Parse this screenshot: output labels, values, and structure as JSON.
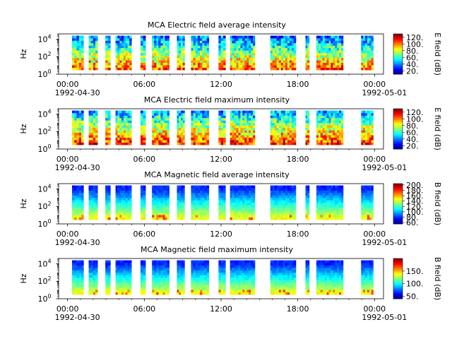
{
  "chart_data": [
    {
      "type": "heatmap",
      "title": "MCA  Electric field average intensity",
      "ylabel": "Hz",
      "yscale": "log",
      "ylim": [
        1,
        40000
      ],
      "y_ticks": [
        {
          "exp": "0"
        },
        {
          "exp": "2"
        },
        {
          "exp": "4"
        }
      ],
      "x_ticks": [
        "00:00",
        "06:00",
        "12:00",
        "18:00",
        "00:00"
      ],
      "x_dates": [
        "1992-04-30",
        "1992-05-01"
      ],
      "xlim_hours": [
        -0.7,
        24.7
      ],
      "colorbar": {
        "label": "E field (dB)",
        "ticks": [
          "20.",
          "40.",
          "60.",
          "80.",
          "100.",
          "120."
        ],
        "range": [
          10,
          130
        ]
      },
      "colormap": "jet",
      "style": "electric"
    },
    {
      "type": "heatmap",
      "title": "MCA  Electric field maximum intensity",
      "ylabel": "Hz",
      "yscale": "log",
      "ylim": [
        1,
        40000
      ],
      "y_ticks": [
        {
          "exp": "0"
        },
        {
          "exp": "2"
        },
        {
          "exp": "4"
        }
      ],
      "x_ticks": [
        "00:00",
        "06:00",
        "12:00",
        "18:00",
        "00:00"
      ],
      "x_dates": [
        "1992-04-30",
        "1992-05-01"
      ],
      "xlim_hours": [
        -0.7,
        24.7
      ],
      "colorbar": {
        "label": "E field (dB)",
        "ticks": [
          "20.",
          "40.",
          "60.",
          "80.",
          "100.",
          "120."
        ],
        "range": [
          10,
          130
        ]
      },
      "colormap": "jet",
      "style": "electric"
    },
    {
      "type": "heatmap",
      "title": "MCA  Magnetic field average intensity",
      "ylabel": "Hz",
      "yscale": "log",
      "ylim": [
        1,
        40000
      ],
      "y_ticks": [
        {
          "exp": "0"
        },
        {
          "exp": "2"
        },
        {
          "exp": "4"
        }
      ],
      "x_ticks": [
        "00:00",
        "06:00",
        "12:00",
        "18:00",
        "00:00"
      ],
      "x_dates": [
        "1992-04-30",
        "1992-05-01"
      ],
      "xlim_hours": [
        -0.7,
        24.7
      ],
      "colorbar": {
        "label": "B field (dB)",
        "ticks": [
          "60.",
          "80.",
          "100.",
          "120.",
          "140.",
          "160.",
          "180.",
          "200."
        ],
        "range": [
          55,
          205
        ]
      },
      "colormap": "jet",
      "style": "magnetic"
    },
    {
      "type": "heatmap",
      "title": "MCA  Magnetic field maximum intensity",
      "ylabel": "Hz",
      "yscale": "log",
      "ylim": [
        1,
        40000
      ],
      "y_ticks": [
        {
          "exp": "0"
        },
        {
          "exp": "2"
        },
        {
          "exp": "4"
        }
      ],
      "x_ticks": [
        "00:00",
        "06:00",
        "12:00",
        "18:00",
        "00:00"
      ],
      "x_dates": [
        "1992-04-30",
        "1992-05-01"
      ],
      "xlim_hours": [
        -0.7,
        24.7
      ],
      "colorbar": {
        "label": "B field (dB)",
        "ticks": [
          "50.",
          "100.",
          "150."
        ],
        "range": [
          40,
          200
        ]
      },
      "colormap": "jet",
      "style": "magnetic"
    }
  ],
  "data_windows_hours": [
    [
      0.35,
      1.25
    ],
    [
      1.65,
      2.35
    ],
    [
      2.95,
      3.35
    ],
    [
      3.75,
      5.0
    ],
    [
      5.7,
      6.1
    ],
    [
      6.6,
      7.95
    ],
    [
      8.55,
      9.15
    ],
    [
      9.65,
      11.05
    ],
    [
      11.8,
      12.35
    ],
    [
      12.7,
      14.65
    ],
    [
      15.85,
      17.85
    ],
    [
      18.6,
      18.9
    ],
    [
      19.45,
      21.55
    ],
    [
      22.95,
      23.9
    ]
  ]
}
